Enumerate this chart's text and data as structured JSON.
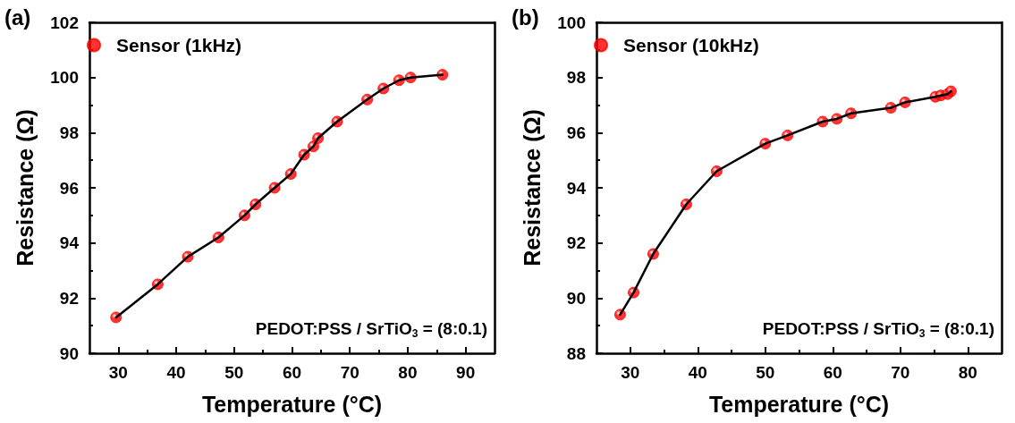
{
  "chart_data": [
    {
      "type": "scatter",
      "title": "(a)",
      "xlabel": "Temperature (°C)",
      "ylabel": "Resistance (Ω)",
      "x": [
        29.6,
        36.8,
        42,
        47.3,
        51.8,
        53.7,
        57,
        59.8,
        62.1,
        63.7,
        64.5,
        67.8,
        73,
        75.8,
        78.5,
        80.5,
        86
      ],
      "series": [
        {
          "type": "line",
          "marker": "none",
          "color": "#000000",
          "values": [
            91.3,
            92.5,
            93.5,
            94.2,
            95.0,
            95.4,
            96.0,
            96.5,
            97.2,
            97.5,
            97.8,
            98.4,
            99.2,
            99.6,
            99.9,
            100.0,
            100.1
          ]
        },
        {
          "name": "Sensor (1kHz)",
          "color": "#ff0000",
          "values": [
            91.3,
            92.5,
            93.5,
            94.2,
            95.0,
            95.4,
            96.0,
            96.5,
            97.2,
            97.5,
            97.8,
            98.4,
            99.2,
            99.6,
            99.9,
            100.0,
            100.1
          ]
        }
      ],
      "xlim": [
        25,
        95
      ],
      "xticks": [
        30,
        40,
        50,
        60,
        70,
        80,
        90
      ],
      "ylim": [
        90,
        102
      ],
      "yticks": [
        90,
        92,
        94,
        96,
        98,
        100,
        102
      ],
      "annotations": [
        "PEDOT:PSS / SrTiO$_{3}$ = (8:0.1)"
      ],
      "legend": "top left",
      "marker": "circle",
      "line_style": "solid",
      "grid": false
    },
    {
      "type": "scatter",
      "title": "(b)",
      "xlabel": "Temperature (°C)",
      "ylabel": "Resistance (Ω)",
      "x": [
        28.5,
        30.5,
        33.4,
        38.3,
        42.8,
        50,
        53.3,
        58.5,
        60.6,
        62.7,
        68.6,
        70.7,
        75.2,
        76,
        77,
        77.5
      ],
      "series": [
        {
          "type": "line",
          "marker": "none",
          "color": "#000000",
          "values": [
            89.4,
            90.2,
            91.6,
            93.4,
            94.6,
            95.6,
            95.9,
            96.4,
            96.5,
            96.7,
            96.9,
            97.1,
            97.3,
            97.35,
            97.4,
            97.5
          ]
        },
        {
          "name": "Sensor (10kHz)",
          "color": "#ff0000",
          "values": [
            89.4,
            90.2,
            91.6,
            93.4,
            94.6,
            95.6,
            95.9,
            96.4,
            96.5,
            96.7,
            96.9,
            97.1,
            97.3,
            97.35,
            97.4,
            97.5
          ]
        }
      ],
      "xlim": [
        25,
        85
      ],
      "xticks": [
        30,
        40,
        50,
        60,
        70,
        80
      ],
      "ylim": [
        88,
        100
      ],
      "yticks": [
        88,
        90,
        92,
        94,
        96,
        98,
        100
      ],
      "annotations": [
        "PEDOT:PSS / SrTiO$_{3}$ = (8:0.1)"
      ],
      "legend": "top left",
      "marker": "circle",
      "line_style": "solid",
      "grid": false
    }
  ]
}
